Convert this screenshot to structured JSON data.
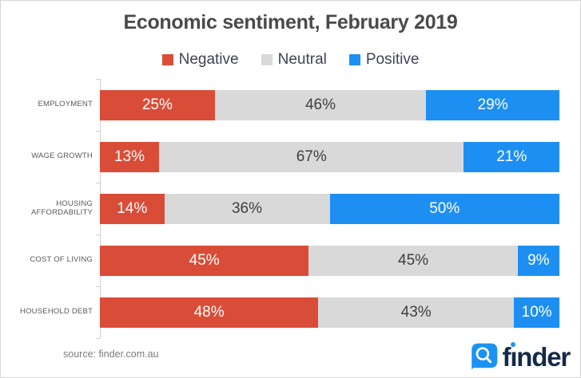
{
  "window": {
    "background": "#ffffff",
    "border_color": "#d6d6d6"
  },
  "title": "Economic sentiment, February 2019",
  "source_label": "source: finder.com.au",
  "logo": {
    "brand_f": "f",
    "brand_dotless_i": "ı",
    "brand_rest": "nder",
    "brand": "finder",
    "icon": "finder-magnifier-icon",
    "icon_color": "#1c93f3",
    "text_color": "#152a4a"
  },
  "chart_data": {
    "type": "bar",
    "orientation": "horizontal",
    "stacked": true,
    "title": "Economic sentiment, February 2019",
    "legend_position": "top",
    "value_suffix": "%",
    "axis_color": "#cfcfcf",
    "categories": [
      "EMPLOYMENT",
      "WAGE GROWTH",
      "HOUSING AFFORDABILITY",
      "COST OF LIVING",
      "HOUSEHOLD DEBT"
    ],
    "series": [
      {
        "name": "Negative",
        "color": "#d94d38",
        "text_color": "#ffffff",
        "values": [
          25,
          13,
          14,
          45,
          48
        ]
      },
      {
        "name": "Neutral",
        "color": "#d9d9d9",
        "text_color": "#3f3f3f",
        "values": [
          46,
          67,
          36,
          45,
          43
        ]
      },
      {
        "name": "Positive",
        "color": "#1d8ff2",
        "text_color": "#ffffff",
        "values": [
          29,
          21,
          50,
          9,
          10
        ]
      }
    ]
  }
}
